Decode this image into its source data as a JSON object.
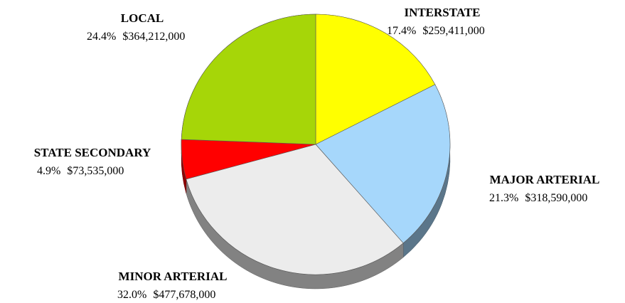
{
  "chart_data": {
    "type": "pie",
    "categories": [
      "INTERSTATE",
      "MAJOR ARTERIAL",
      "MINOR ARTERIAL",
      "STATE SECONDARY",
      "LOCAL"
    ],
    "values": [
      17.4,
      21.3,
      32.0,
      4.9,
      24.4
    ],
    "value_labels": [
      "17.4%",
      "21.3%",
      "32.0%",
      "4.9%",
      "24.4%"
    ],
    "amounts": [
      259411000,
      318590000,
      477678000,
      73535000,
      364212000
    ],
    "amount_labels": [
      "$259,411,000",
      "$318,590,000",
      "$477,678,000",
      "$73,535,000",
      "$364,212,000"
    ],
    "colors": [
      "#ffff00",
      "#a6d7fb",
      "#ececec",
      "#ff0000",
      "#a6d608"
    ]
  }
}
